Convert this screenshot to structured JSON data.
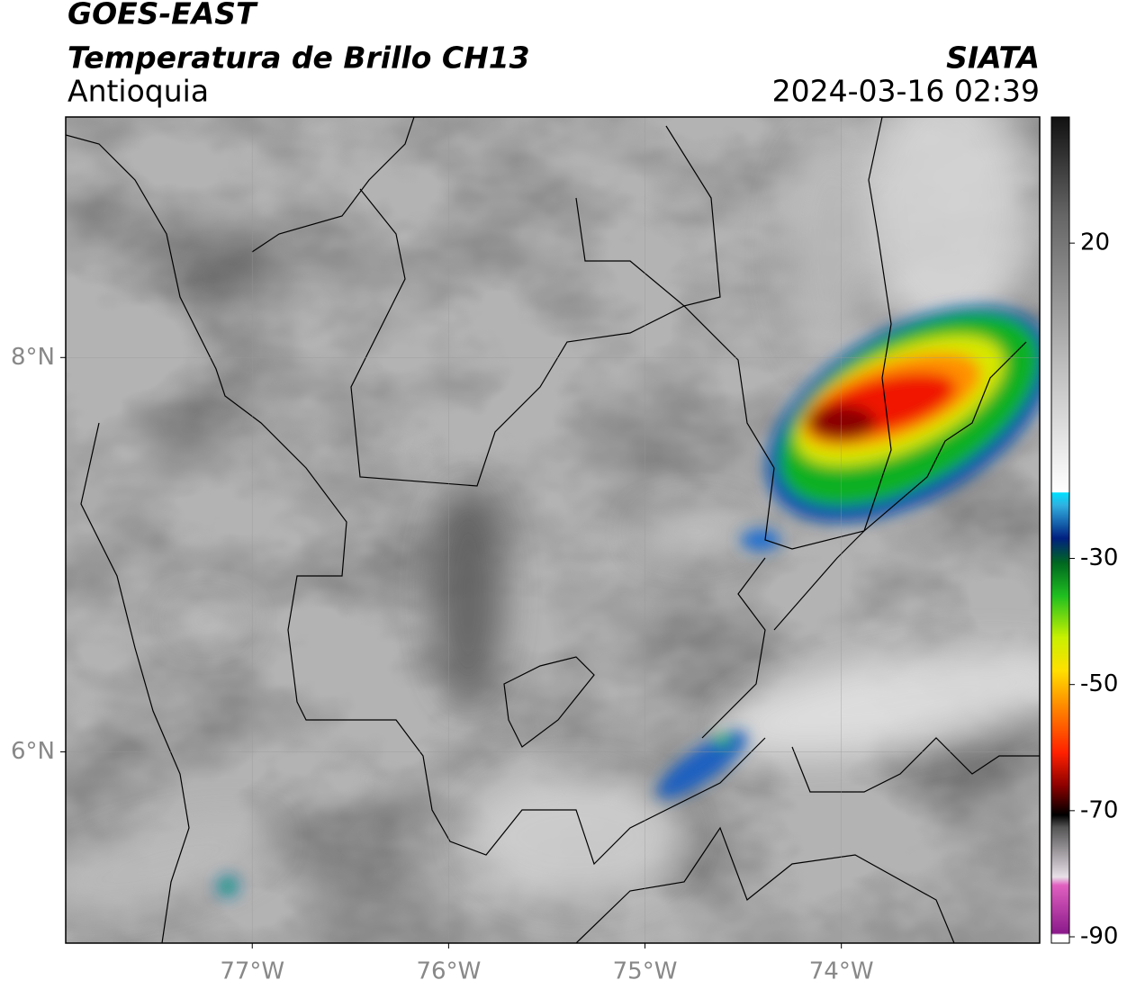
{
  "header": {
    "title": "GOES-EAST",
    "subtitle": "Temperatura de Brillo CH13",
    "region": "Antioquia",
    "source": "SIATA",
    "datetime": "2024-03-16 02:39"
  },
  "map": {
    "xlim": [
      -77.95,
      -72.99
    ],
    "ylim": [
      5.03,
      9.22
    ],
    "xticks": [
      {
        "value": -77,
        "label": "77°W"
      },
      {
        "value": -76,
        "label": "76°W"
      },
      {
        "value": -75,
        "label": "75°W"
      },
      {
        "value": -74,
        "label": "74°W"
      }
    ],
    "yticks": [
      {
        "value": 6,
        "label": "6°N"
      },
      {
        "value": 8,
        "label": "8°N"
      }
    ],
    "grid": true
  },
  "colorbar": {
    "lim": [
      -91,
      40
    ],
    "ticks": [
      20,
      -30,
      -50,
      -70,
      -90
    ]
  }
}
